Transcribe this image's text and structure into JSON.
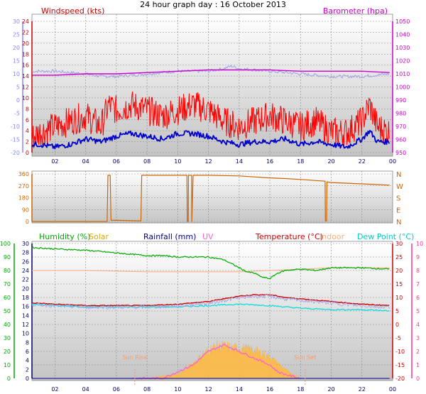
{
  "title": "24 hour graph day : 16 October 2013",
  "colors": {
    "background": "#ffffff",
    "plot_bg_top": "#ffffff",
    "plot_bg_bottom": "#c8c8c8",
    "wind_avg": "#0000cc",
    "wind_gust": "#ff0000",
    "temperature_in_barometer_panel": "#a0a0e8",
    "barometer": "#cc00cc",
    "wind_direction": "#cc6600",
    "humidity": "#00aa00",
    "solar": "#ffbb44",
    "rainfall": "#000088",
    "uv": "#ff66cc",
    "temperature": "#cc0000",
    "indoor": "#ffaa77",
    "dew_point": "#00dddd",
    "left_axis_blue": "#8888ff",
    "left_axis_red": "#cc0000",
    "right_axis_magenta": "#cc00cc",
    "right_axis_pink": "#ff3399",
    "left_axis_green": "#00aa00",
    "left_axis_dark": "#000066",
    "right_axis_red": "#cc0000",
    "grid": "#888888",
    "sunrise_text": "#ff9966"
  },
  "panels": {
    "wind": {
      "left_label": "Windspeed (kts)",
      "right_label": "Barometer (hpa)",
      "left_outer_ticks": [
        "30",
        "25",
        "20",
        "15",
        "10",
        "5",
        "0",
        "-5",
        "-10",
        "-15",
        "-20"
      ],
      "left_inner_ticks": [
        "24",
        "22",
        "20",
        "18",
        "16",
        "14",
        "12",
        "10",
        "8",
        "6",
        "4",
        "2",
        "0"
      ],
      "right_ticks": [
        "1050",
        "1040",
        "1030",
        "1020",
        "1010",
        "1000",
        "990",
        "980",
        "970",
        "960",
        "950"
      ]
    },
    "direction": {
      "left_ticks": [
        "360",
        "270",
        "180",
        "90",
        "0"
      ],
      "right_ticks": [
        "N",
        "W",
        "S",
        "E",
        "N"
      ]
    },
    "climate": {
      "labels": {
        "humidity": "Humidity (%)",
        "solar": "Solar",
        "rainfall": "Rainfall (mm)",
        "uv": "UV",
        "temperature": "Temperature (°C)",
        "indoor": "Indoor",
        "dew_point": "Dew Point (°C)"
      },
      "left_outer_ticks": [
        "100",
        "90",
        "80",
        "70",
        "60",
        "50",
        "40",
        "30",
        "20",
        "10",
        "0"
      ],
      "left_inner_ticks": [
        "30",
        "28",
        "26",
        "24",
        "22",
        "20",
        "18",
        "16",
        "14",
        "12",
        "10",
        "8",
        "6",
        "4",
        "2",
        "0"
      ],
      "right_inner_ticks": [
        "30",
        "25",
        "20",
        "15",
        "10",
        "5",
        "0",
        "-5",
        "-10",
        "-15",
        "-20"
      ],
      "right_outer_ticks": [
        "10",
        "9",
        "8",
        "7",
        "6",
        "5",
        "4",
        "3",
        "2",
        "1",
        "0"
      ],
      "sunrise_label": "Sun Rise",
      "sunset_label": "Sun Set"
    }
  },
  "x_ticks": [
    "02",
    "04",
    "06",
    "08",
    "10",
    "12",
    "14",
    "16",
    "18",
    "20",
    "22",
    "00"
  ],
  "chart_data": [
    {
      "type": "line",
      "title": "24 hour graph day : 16 October 2013",
      "x_unit": "hour",
      "x_range": [
        0.5,
        24
      ],
      "ylabel_left": "Windspeed (kts)",
      "ylabel_right": "Barometer (hpa)",
      "ylim_left": [
        0,
        24
      ],
      "ylim_right": [
        950,
        1050
      ],
      "series": [
        {
          "name": "Barometer (hpa)",
          "axis": "right",
          "x": [
            0.5,
            2,
            4,
            6,
            8,
            10,
            12,
            13,
            14,
            16,
            18,
            20,
            22,
            23.8
          ],
          "values": [
            1009,
            1009,
            1010,
            1010,
            1011,
            1012,
            1013,
            1013,
            1013,
            1013,
            1012,
            1012,
            1012,
            1011
          ]
        },
        {
          "axis": "outer_left",
          "x": [
            0.5,
            2,
            4,
            5,
            6,
            8,
            10,
            12,
            13,
            13.5,
            14,
            16,
            18,
            20,
            22,
            23.8
          ],
          "values": [
            11,
            11,
            10,
            9,
            9,
            10,
            11,
            11,
            12,
            13,
            12,
            11,
            10,
            9,
            9,
            10
          ]
        },
        {
          "axis": "left",
          "x": [
            0.5,
            1,
            2,
            3,
            4,
            5,
            5.5,
            6,
            7,
            8,
            9,
            10,
            11,
            12,
            13,
            14,
            15,
            16,
            17,
            18,
            19,
            20,
            21,
            22,
            22.5,
            23,
            23.8
          ],
          "values": [
            3,
            4,
            5,
            6,
            7,
            5,
            9,
            8,
            9,
            8,
            7,
            8,
            9,
            8,
            6,
            5,
            6,
            7,
            6,
            5,
            6,
            4,
            4,
            6,
            9,
            5,
            4
          ]
        },
        {
          "axis": "left",
          "x": [
            0.5,
            1,
            2,
            3,
            4,
            5,
            6,
            7,
            8,
            9,
            10,
            11,
            12,
            13,
            14,
            15,
            16,
            17,
            18,
            19,
            20,
            21,
            22,
            22.5,
            23,
            23.8
          ],
          "values": [
            1.5,
            1.5,
            1,
            1.5,
            2.5,
            2,
            3,
            3.5,
            3,
            2.5,
            3.5,
            3.5,
            3,
            2,
            1.5,
            2,
            2,
            2.5,
            1.5,
            2,
            1.5,
            1,
            2.5,
            4,
            2,
            2
          ]
        }
      ]
    },
    {
      "type": "line",
      "ylim": [
        0,
        360
      ],
      "ylabel_right_ticks": [
        "N",
        "W",
        "S",
        "E",
        "N"
      ],
      "series": [
        {
          "x": [
            0.5,
            5.4,
            5.45,
            5.6,
            5.65,
            7.6,
            7.65,
            10.6,
            10.62,
            10.68,
            10.7,
            10.9,
            10.92,
            11,
            12,
            14,
            16,
            17,
            18,
            19,
            19.6,
            19.62,
            19.7,
            19.72,
            20,
            22,
            23.8
          ],
          "values": [
            0,
            0,
            350,
            350,
            10,
            5,
            350,
            350,
            0,
            0,
            350,
            350,
            0,
            350,
            350,
            345,
            330,
            325,
            318,
            310,
            305,
            5,
            5,
            300,
            295,
            285,
            275
          ]
        }
      ]
    },
    {
      "type": "line",
      "ylabel_left": "Humidity (%)",
      "ylabel_right": "Temperature (°C)",
      "ylim_humidity": [
        0,
        100
      ],
      "ylim_temperature": [
        -20,
        30
      ],
      "ylim_solar_rain": [
        0,
        30
      ],
      "ylim_uv": [
        0,
        10
      ],
      "series": [
        {
          "name": "Humidity (%)",
          "axis": "humidity",
          "x": [
            0.5,
            2,
            4,
            6,
            8,
            9,
            10,
            12,
            13,
            14,
            14.5,
            15,
            15.5,
            16,
            16.5,
            17,
            18,
            19,
            20,
            21,
            22,
            23.8
          ],
          "values": [
            97,
            96,
            95,
            93,
            91,
            91,
            90,
            90,
            88,
            82,
            79,
            78,
            75,
            74,
            78,
            80,
            81,
            80,
            82,
            82,
            82,
            81
          ]
        },
        {
          "name": "Indoor",
          "axis": "temperature",
          "x": [
            0.5,
            4,
            8,
            10,
            12,
            14,
            16,
            18,
            20,
            22,
            23.8
          ],
          "values": [
            20,
            20,
            19.5,
            19.5,
            19.5,
            19.5,
            20,
            20.5,
            21,
            21,
            21
          ]
        },
        {
          "name": "Temperature (°C)",
          "axis": "temperature",
          "x": [
            0.5,
            2,
            4,
            6,
            8,
            10,
            12,
            13,
            14,
            15,
            16,
            17,
            18,
            19,
            20,
            22,
            23.8
          ],
          "values": [
            8,
            7.5,
            7,
            7,
            7,
            7.5,
            8.5,
            9.5,
            10.5,
            11,
            11,
            10,
            9.5,
            9,
            8.5,
            7.5,
            7
          ]
        },
        {
          "name": "Dew Point (°C)",
          "axis": "temperature",
          "x": [
            0.5,
            2,
            4,
            6,
            8,
            10,
            12,
            14,
            16,
            18,
            20,
            22,
            23.8
          ],
          "values": [
            7.5,
            7,
            6.5,
            6.5,
            6.5,
            6.5,
            7,
            7.5,
            7,
            6,
            5.5,
            5.5,
            5
          ]
        },
        {
          "name": "Solar",
          "axis": "solar_rain",
          "x": [
            7,
            8,
            9,
            10,
            10.5,
            11,
            11.5,
            12,
            12.5,
            13,
            13.5,
            14,
            15,
            16,
            16.5,
            17,
            17.5,
            18
          ],
          "values": [
            0,
            0,
            0.5,
            1,
            2,
            3.5,
            5,
            6.5,
            7.5,
            7.5,
            7,
            7,
            6.5,
            5,
            3.5,
            2,
            1,
            0
          ]
        },
        {
          "name": "UV",
          "axis": "uv",
          "x": [
            7,
            9,
            10,
            11,
            12,
            13,
            14,
            15,
            16,
            16.5,
            17,
            18
          ],
          "values": [
            0,
            0,
            0.5,
            1,
            2,
            2.5,
            2,
            1.5,
            1,
            0.5,
            0.3,
            0
          ]
        },
        {
          "name": "Rainfall (mm)",
          "axis": "solar_rain",
          "x": [
            0.5,
            23.8
          ],
          "values": [
            0,
            0
          ]
        }
      ],
      "annotations": [
        {
          "label": "Sun Rise",
          "x": 7.2
        },
        {
          "label": "Sun Set",
          "x": 18.3
        }
      ]
    }
  ]
}
